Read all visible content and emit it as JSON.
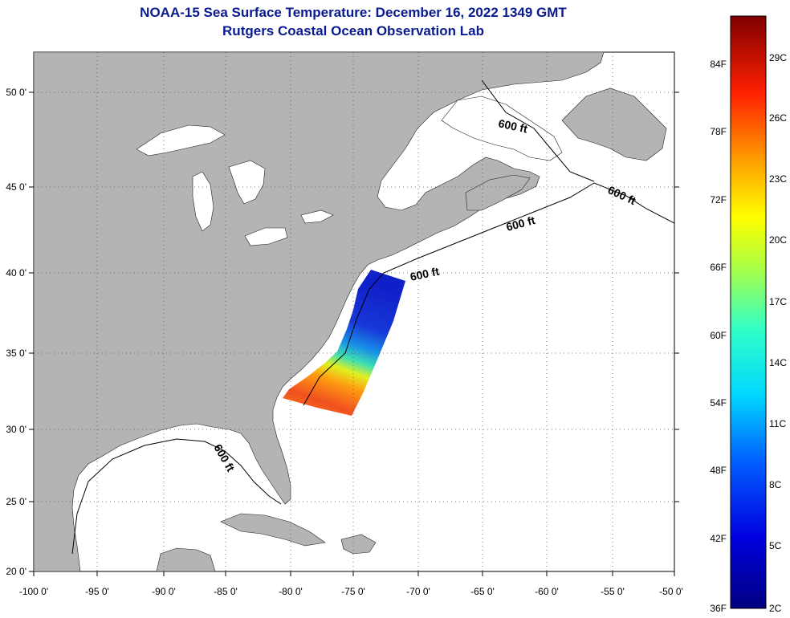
{
  "title": {
    "line1": "NOAA-15 Sea Surface Temperature:  December 16, 2022 1349 GMT",
    "line2": "Rutgers Coastal Ocean Observation Lab"
  },
  "map": {
    "lon_range": [
      -100,
      -50
    ],
    "lat_range": [
      20,
      52
    ],
    "lon_ticks": [
      "-100 0'",
      "-95 0'",
      "-90 0'",
      "-85 0'",
      "-80 0'",
      "-75 0'",
      "-70 0'",
      "-65 0'",
      "-60 0'",
      "-55 0'",
      "-50 0'"
    ],
    "lat_ticks": [
      "50 0'",
      "45 0'",
      "40 0'",
      "35 0'",
      "30 0'",
      "25 0'",
      "20 0'"
    ],
    "isobath_labels": [
      "600 ft",
      "600 ft",
      "600 ft",
      "600 ft",
      "600 ft"
    ],
    "colors": {
      "land": "#b4b4b4",
      "ocean": "#ffffff",
      "grid": "#555555",
      "title": "#0a1a8f"
    }
  },
  "colorbar": {
    "f_labels": [
      "84F",
      "78F",
      "72F",
      "66F",
      "60F",
      "54F",
      "48F",
      "42F",
      "36F"
    ],
    "c_labels": [
      "29C",
      "26C",
      "23C",
      "20C",
      "17C",
      "14C",
      "11C",
      "8C",
      "5C",
      "2C"
    ]
  }
}
